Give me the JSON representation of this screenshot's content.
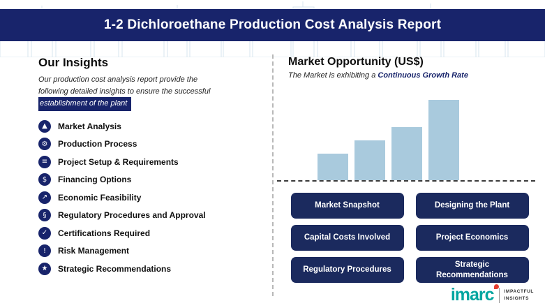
{
  "header": {
    "title": "1-2 Dichloroethane Production Cost Analysis Report"
  },
  "insights": {
    "heading": "Our Insights",
    "description_line1": "Our production cost analysis report provide the",
    "description_line2": "following detailed insights to ensure the successful",
    "description_line3": "establishment of the plant",
    "items": [
      {
        "label": "Market Analysis",
        "icon": "bar-chart-icon",
        "glyph": "▲"
      },
      {
        "label": "Production Process",
        "icon": "gear-icon",
        "glyph": "⚙"
      },
      {
        "label": "Project Setup & Requirements",
        "icon": "clipboard-icon",
        "glyph": "≡"
      },
      {
        "label": "Financing Options",
        "icon": "dollar-icon",
        "glyph": "$"
      },
      {
        "label": "Economic Feasibility",
        "icon": "growth-icon",
        "glyph": "↗"
      },
      {
        "label": "Regulatory Procedures and Approval",
        "icon": "document-icon",
        "glyph": "§"
      },
      {
        "label": "Certifications Required",
        "icon": "certificate-icon",
        "glyph": "✓"
      },
      {
        "label": "Risk Management",
        "icon": "risk-icon",
        "glyph": "!"
      },
      {
        "label": "Strategic Recommendations",
        "icon": "strategy-icon",
        "glyph": "★"
      }
    ]
  },
  "market": {
    "heading": "Market Opportunity (US$)",
    "subtitle_prefix": "The Market is exhibiting a ",
    "subtitle_highlight": "Continuous Growth Rate"
  },
  "chart_data": {
    "type": "bar",
    "categories": [
      "",
      "",
      "",
      ""
    ],
    "values": [
      38,
      57,
      76,
      115
    ],
    "title": "Market Opportunity (US$)",
    "xlabel": "",
    "ylabel": "",
    "ylim": [
      0,
      120
    ],
    "grid": false,
    "legend": false,
    "notes": "Four unlabeled light-blue bars rising left to right above a dashed baseline, depicting continuous growth; values are relative heights (no axis scale shown)",
    "bar_color": "#a9cadd",
    "baseline_style": "dashed"
  },
  "buttons": [
    {
      "label": "Market Snapshot"
    },
    {
      "label": "Designing the Plant"
    },
    {
      "label": "Capital Costs Involved"
    },
    {
      "label": "Project Economics"
    },
    {
      "label": "Regulatory Procedures"
    },
    {
      "label": "Strategic Recommendations"
    }
  ],
  "logo": {
    "brand": "imarc",
    "tagline_top": "IMPACTFUL",
    "tagline_bottom": "INSIGHTS"
  },
  "colors": {
    "navy": "#18246b",
    "button_navy": "#1b2a5e",
    "bar_blue": "#a9cadd",
    "brand_teal": "#00a5a0",
    "brand_red": "#e43d30"
  }
}
